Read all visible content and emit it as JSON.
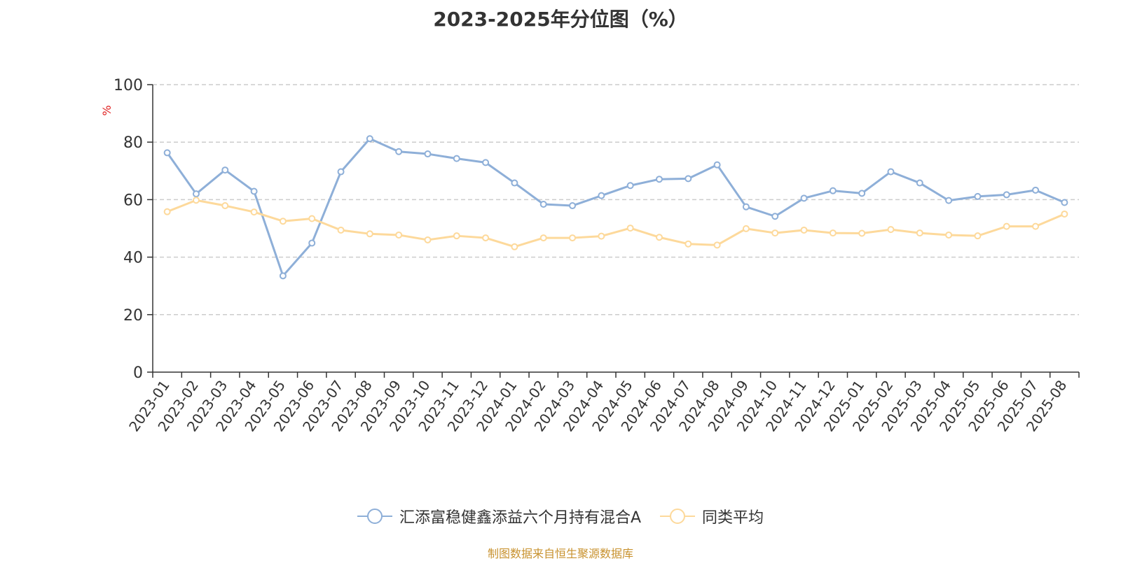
{
  "chart_data": {
    "type": "line",
    "title": "2023-2025年分位图（%）",
    "ylabel": "%",
    "ylim": [
      0,
      100
    ],
    "yticks": [
      0,
      20,
      40,
      60,
      80,
      100
    ],
    "grid": true,
    "legend_position": "bottom",
    "categories": [
      "2023-01",
      "2023-02",
      "2023-03",
      "2023-04",
      "2023-05",
      "2023-06",
      "2023-07",
      "2023-08",
      "2023-09",
      "2023-10",
      "2023-11",
      "2023-12",
      "2024-01",
      "2024-02",
      "2024-03",
      "2024-04",
      "2024-05",
      "2024-06",
      "2024-07",
      "2024-08",
      "2024-09",
      "2024-10",
      "2024-11",
      "2024-12",
      "2025-01",
      "2025-02",
      "2025-03",
      "2025-04",
      "2025-05",
      "2025-06",
      "2025-07",
      "2025-08"
    ],
    "series": [
      {
        "name": "汇添富稳健鑫添益六个月持有混合A",
        "color": "#8eafd8",
        "values": [
          76.3,
          62.0,
          70.3,
          62.9,
          33.5,
          44.9,
          69.7,
          81.2,
          76.7,
          75.9,
          74.3,
          72.9,
          65.8,
          58.4,
          57.9,
          61.4,
          64.9,
          67.1,
          67.3,
          72.1,
          57.5,
          54.2,
          60.5,
          63.1,
          62.2,
          69.7,
          65.8,
          59.7,
          61.1,
          61.7,
          63.3,
          59.0
        ]
      },
      {
        "name": "同类平均",
        "color": "#fdd99b",
        "values": [
          55.8,
          59.8,
          57.9,
          55.7,
          52.5,
          53.4,
          49.4,
          48.1,
          47.7,
          46.0,
          47.4,
          46.7,
          43.6,
          46.7,
          46.7,
          47.3,
          50.1,
          46.9,
          44.6,
          44.2,
          49.9,
          48.4,
          49.4,
          48.4,
          48.3,
          49.6,
          48.4,
          47.7,
          47.4,
          50.7,
          50.7,
          55.0
        ]
      }
    ]
  },
  "source_text": "制图数据来自恒生聚源数据库"
}
